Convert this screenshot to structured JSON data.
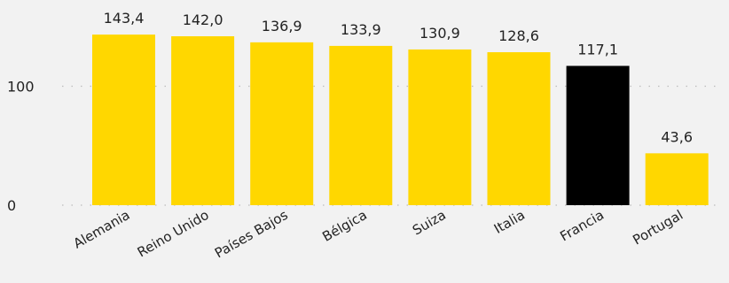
{
  "chart_data": {
    "type": "bar",
    "categories": [
      "Alemania",
      "Reino Unido",
      "Países Bajos",
      "Bélgica",
      "Suiza",
      "Italia",
      "Francia",
      "Portugal"
    ],
    "values": [
      143.4,
      142.0,
      136.9,
      133.9,
      130.9,
      128.6,
      117.1,
      43.6
    ],
    "value_labels": [
      "143,4",
      "142,0",
      "136,9",
      "133,9",
      "130,9",
      "128,6",
      "117,1",
      "43,6"
    ],
    "highlight_category": "Francia",
    "colors": {
      "default": "#ffd700",
      "highlight": "#000000"
    },
    "yticks": [
      0,
      100
    ],
    "ytick_labels": [
      "0",
      "100"
    ],
    "ylim": [
      0,
      143.4
    ],
    "grid": true,
    "title": "",
    "xlabel": "",
    "ylabel": ""
  }
}
